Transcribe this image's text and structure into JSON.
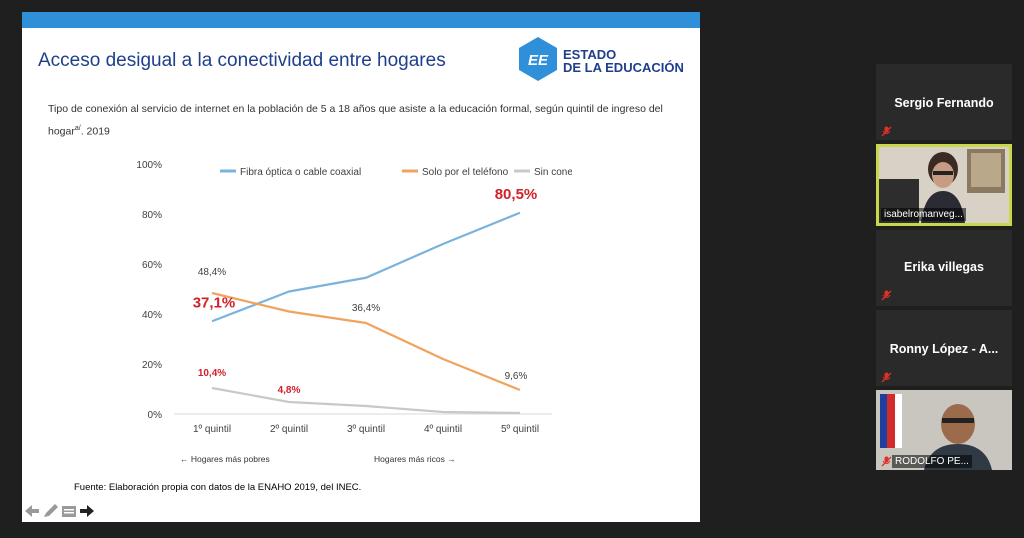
{
  "slide": {
    "title": "Acceso desigual a la conectividad  entre hogares",
    "logo": {
      "line1": "ESTADO",
      "line2": "DE LA EDUCACIÓN",
      "mark": "EE"
    },
    "subtitle": "Tipo de conexión al servicio de internet en la población de 5 a 18 años que asiste a la educación formal, según quintil de ingreso del hogar",
    "subtitle_sup": "a/",
    "subtitle_year": ". 2019",
    "source": "Fuente: Elaboración propia con datos de la ENAHO 2019, del INEC.",
    "axis_note_left": "← Hogares más pobres",
    "axis_note_right": "Hogares más ricos →"
  },
  "chart_data": {
    "type": "line",
    "categories": [
      "1º quintil",
      "2º quintil",
      "3º quintil",
      "4º quintil",
      "5º quintil"
    ],
    "yticks": [
      "0%",
      "20%",
      "40%",
      "60%",
      "80%",
      "100%"
    ],
    "ylim": [
      0,
      100
    ],
    "grid": false,
    "legend_position": "top",
    "series": [
      {
        "name": "Fibra óptica o cable coaxial",
        "color": "#7ab3dd",
        "values": [
          37.1,
          49.0,
          54.5,
          68.0,
          80.5
        ]
      },
      {
        "name": "Solo por el teléfono",
        "color": "#f0a35e",
        "values": [
          48.4,
          41.0,
          36.4,
          22.0,
          9.6
        ]
      },
      {
        "name": "Sin conexión",
        "color": "#c8c8c8",
        "values": [
          10.4,
          4.8,
          3.2,
          0.8,
          0.4
        ]
      }
    ],
    "data_labels": [
      {
        "text": "48,4%",
        "series": 1,
        "index": 0,
        "color": "#404040",
        "size": 10,
        "dx": 0,
        "dy": -18
      },
      {
        "text": "37,1%",
        "series": 0,
        "index": 0,
        "color": "#d0202a",
        "size": 15,
        "dx": 2,
        "dy": -14,
        "bold": true
      },
      {
        "text": "36,4%",
        "series": 1,
        "index": 2,
        "color": "#404040",
        "size": 10,
        "dx": 0,
        "dy": -12
      },
      {
        "text": "80,5%",
        "series": 0,
        "index": 4,
        "color": "#d0202a",
        "size": 15,
        "dx": -4,
        "dy": -14,
        "bold": true
      },
      {
        "text": "9,6%",
        "series": 1,
        "index": 4,
        "color": "#404040",
        "size": 10,
        "dx": -4,
        "dy": -11
      },
      {
        "text": "10,4%",
        "series": 2,
        "index": 0,
        "color": "#d0202a",
        "size": 10,
        "dx": 0,
        "dy": -12,
        "bold": true
      },
      {
        "text": "4,8%",
        "series": 2,
        "index": 1,
        "color": "#d0202a",
        "size": 10,
        "dx": 0,
        "dy": -9,
        "bold": true
      }
    ]
  },
  "participants": [
    {
      "name": "Sergio Fernando",
      "video": false,
      "muted": true
    },
    {
      "name": "isabelromanveg...",
      "video": true,
      "muted": false,
      "highlighted": true
    },
    {
      "name": "Erika villegas",
      "video": false,
      "muted": true
    },
    {
      "name": "Ronny López - A...",
      "video": false,
      "muted": true
    },
    {
      "name": "RODOLFO PE...",
      "video": true,
      "muted": true
    }
  ],
  "colors": {
    "accent": "#1e3f8c",
    "topbar": "#2f8fd8",
    "highlight": "#c8d84a",
    "mute": "#e0302a"
  }
}
